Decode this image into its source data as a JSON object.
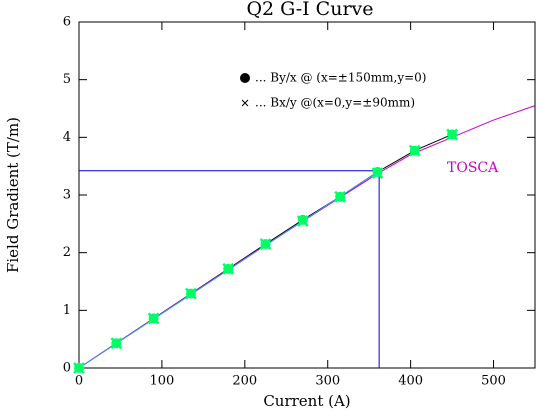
{
  "chart_data": {
    "type": "line",
    "title": "Q2 G-I Curve",
    "xlabel": "Current (A)",
    "ylabel": "Field Gradient (T/m)",
    "xlim": [
      0,
      550
    ],
    "ylim": [
      0,
      6
    ],
    "xticks": [
      0,
      100,
      200,
      300,
      400,
      500
    ],
    "yticks": [
      0,
      1,
      2,
      3,
      4,
      5,
      6
    ],
    "series": [
      {
        "name": "... By/x @ (x=±150mm,y=0)",
        "marker": "circle",
        "color": "#00ff66",
        "legend_color": "#000000",
        "line_color": "#000000",
        "x": [
          0,
          45,
          90,
          135,
          180,
          225,
          270,
          315,
          360,
          405,
          450
        ],
        "values": [
          0,
          0.43,
          0.86,
          1.29,
          1.72,
          2.15,
          2.57,
          2.97,
          3.4,
          3.77,
          4.05
        ]
      },
      {
        "name": "... Bx/y @(x=0,y=±90mm)",
        "marker": "cross",
        "color": "#00ff66",
        "legend_color": "#000000",
        "x": [
          0,
          45,
          90,
          135,
          180,
          225,
          270,
          315,
          360,
          405,
          450
        ],
        "values": [
          0,
          0.43,
          0.86,
          1.29,
          1.72,
          2.15,
          2.55,
          2.97,
          3.38,
          3.77,
          4.05
        ]
      },
      {
        "name": "TOSCA",
        "color": "#cc00cc",
        "x": [
          0,
          100,
          200,
          300,
          360,
          400,
          450,
          500,
          550
        ],
        "values": [
          0,
          0.95,
          1.9,
          2.82,
          3.37,
          3.7,
          4.0,
          4.3,
          4.55
        ]
      },
      {
        "color": "#3399ff",
        "x": [
          0,
          360
        ],
        "values": [
          0,
          3.4
        ]
      }
    ],
    "reference": {
      "x": 362,
      "y": 3.42,
      "color": "#0000cc"
    }
  }
}
